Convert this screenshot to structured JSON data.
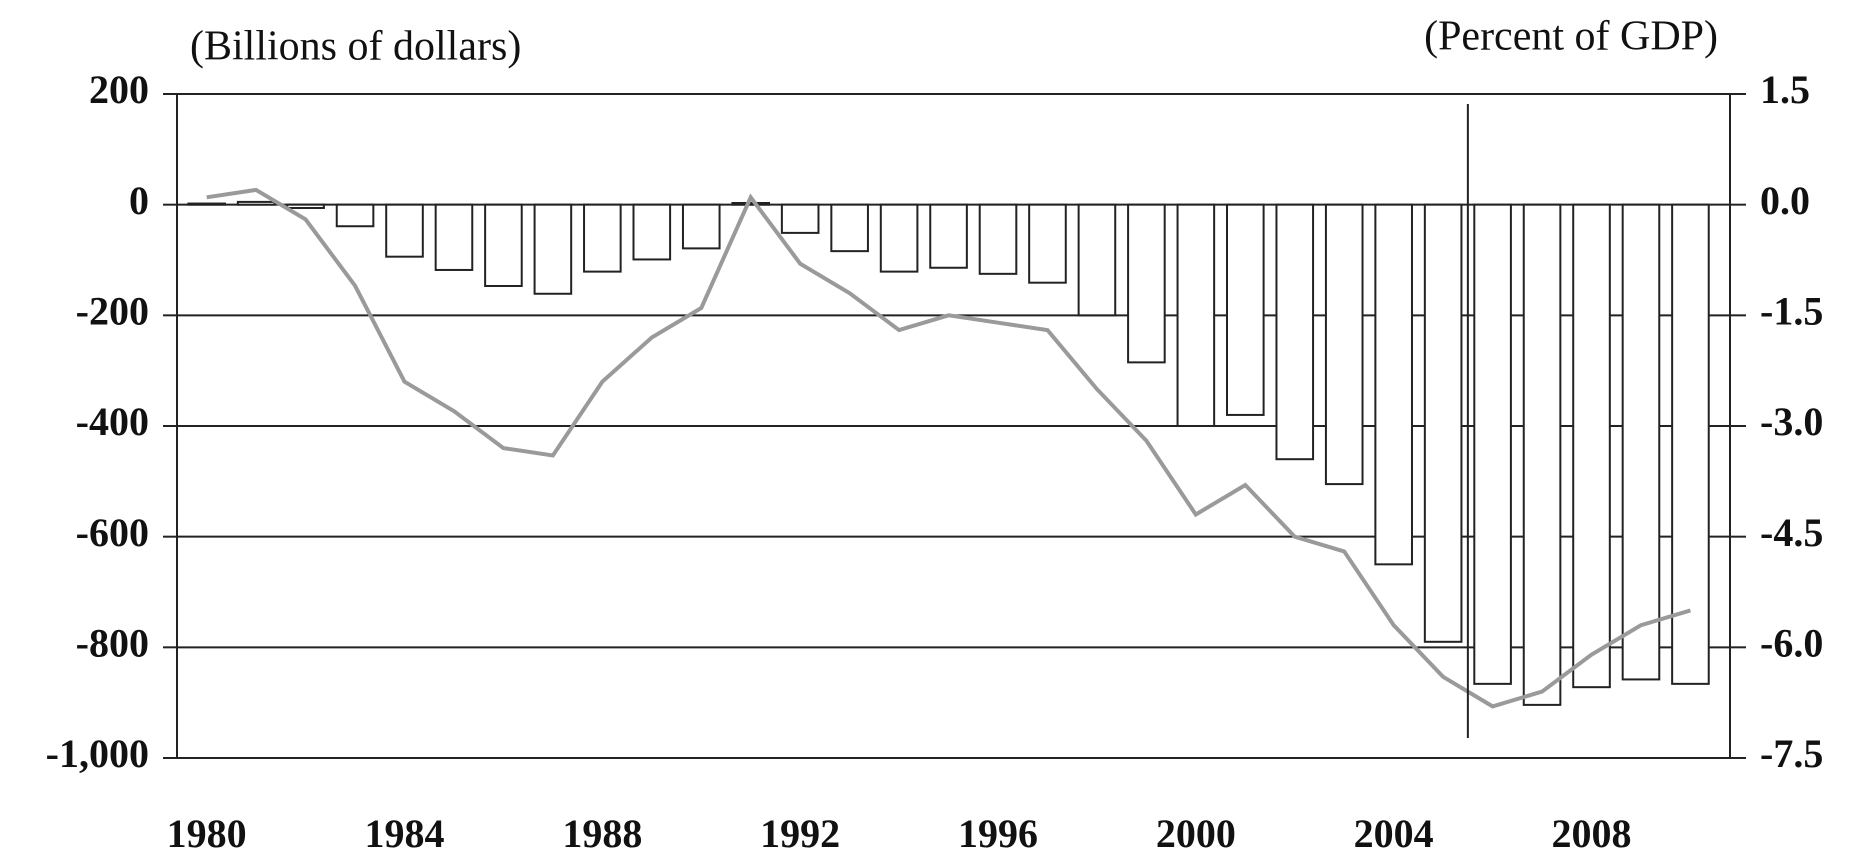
{
  "chart_data": {
    "type": "bar",
    "y_label": "(Billions of dollars)",
    "y2_label": "(Percent of GDP)",
    "x": [
      1980,
      1981,
      1982,
      1983,
      1984,
      1985,
      1986,
      1987,
      1988,
      1989,
      1990,
      1991,
      1992,
      1993,
      1994,
      1995,
      1996,
      1997,
      1998,
      1999,
      2000,
      2001,
      2002,
      2003,
      2004,
      2005,
      2006,
      2007,
      2008,
      2009,
      2010
    ],
    "xlim": [
      1979.4,
      2010.8
    ],
    "xticks": [
      1980,
      1984,
      1988,
      1992,
      1996,
      2000,
      2004,
      2008
    ],
    "ylim": [
      -1000,
      200
    ],
    "yticks": [
      {
        "value": 200,
        "label": "200"
      },
      0,
      -200,
      -400,
      -600,
      -800,
      {
        "value": -1000,
        "label": "-1,000"
      }
    ],
    "y2lim": [
      -7.5,
      1.5
    ],
    "y2ticks": [
      1.5,
      {
        "value": 0,
        "label": "0.0"
      },
      {
        "value": -1.5,
        "label": "-1.5"
      },
      {
        "value": -3,
        "label": "-3.0"
      },
      {
        "value": -4.5,
        "label": "-4.5"
      },
      {
        "value": -6,
        "label": "-6.0"
      },
      {
        "value": -7.5,
        "label": "-7.5"
      }
    ],
    "grid": true,
    "vline_x": 2005.5,
    "series": [
      {
        "type": "bar",
        "color": "#ffffff",
        "values": [
          2,
          5,
          -6,
          -39,
          -94,
          -118,
          -147,
          -161,
          -121,
          -99,
          -79,
          3,
          -51,
          -84,
          -121,
          -114,
          -125,
          -141,
          -200,
          -285,
          -400,
          -380,
          -460,
          -505,
          -650,
          -790,
          -866,
          -904,
          -872,
          -858,
          -866
        ]
      },
      {
        "type": "line",
        "axis": "y2",
        "color": "#9a9a9a",
        "values": [
          0.1,
          0.2,
          -0.2,
          -1.1,
          -2.4,
          -2.8,
          -3.3,
          -3.4,
          -2.4,
          -1.8,
          -1.4,
          0.1,
          -0.8,
          -1.2,
          -1.7,
          -1.5,
          -1.6,
          -1.7,
          -2.5,
          -3.2,
          -4.2,
          -3.8,
          -4.5,
          -4.7,
          -5.7,
          -6.4,
          -6.8,
          -6.6,
          -6.1,
          -5.7,
          -5.5
        ]
      }
    ]
  }
}
